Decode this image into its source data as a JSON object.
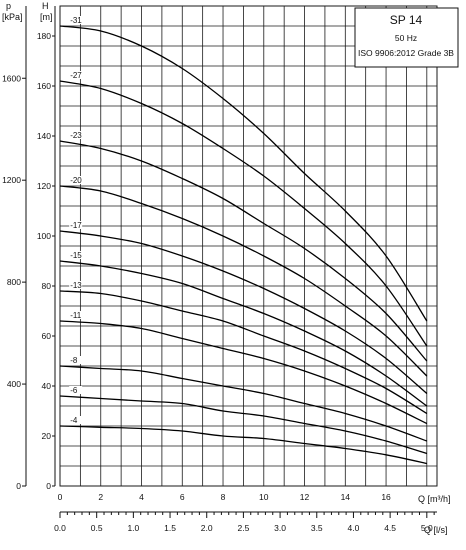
{
  "colors": {
    "background": "#ffffff",
    "grid": "#1a1a1a",
    "curve": "#000000",
    "text": "#111111"
  },
  "title_box": {
    "model": "SP 14",
    "frequency": "50 Hz",
    "standard": "ISO 9906:2012 Grade 3B"
  },
  "axes": {
    "left_outer": {
      "symbol": "p",
      "unit": "[kPa]",
      "ticks": [
        0,
        400,
        800,
        1200,
        1600
      ]
    },
    "left_inner": {
      "symbol": "H",
      "unit": "[m]",
      "ticks": [
        0,
        20,
        40,
        60,
        80,
        100,
        120,
        140,
        160,
        180
      ]
    },
    "bottom_primary": {
      "label": "Q [m³/h]",
      "ticks": [
        0,
        2,
        4,
        6,
        8,
        10,
        12,
        14,
        16
      ]
    },
    "bottom_secondary": {
      "label": "Q [l/s]",
      "ticks": [
        "0.0",
        "0.5",
        "1.0",
        "1.5",
        "2.0",
        "2.5",
        "3.0",
        "3.5",
        "4.0",
        "4.5",
        "5.0"
      ]
    }
  },
  "chart_data": {
    "type": "line",
    "title": "SP 14",
    "xlabel": "Q [m³/h]",
    "ylabel": "H [m]",
    "x2label": "Q [l/s]",
    "y2label": "p [kPa]",
    "xlim": [
      0,
      18.5
    ],
    "ylim": [
      0,
      192
    ],
    "grid": true,
    "series": [
      {
        "name": "-31",
        "x": [
          0,
          2,
          4,
          6,
          8,
          10,
          12,
          14,
          16,
          18
        ],
        "values": [
          184,
          182,
          176,
          167,
          155,
          141,
          125,
          110,
          92,
          66
        ]
      },
      {
        "name": "-27",
        "x": [
          0,
          2,
          4,
          6,
          8,
          10,
          12,
          14,
          16,
          18
        ],
        "values": [
          162,
          159,
          153,
          145,
          135,
          124,
          111,
          97,
          80,
          56
        ]
      },
      {
        "name": "-23",
        "x": [
          0,
          2,
          4,
          6,
          8,
          10,
          12,
          14,
          16,
          18
        ],
        "values": [
          138,
          135,
          130,
          123,
          115,
          105,
          95,
          83,
          69,
          50
        ]
      },
      {
        "name": "-20",
        "x": [
          0,
          2,
          4,
          6,
          8,
          10,
          12,
          14,
          16,
          18
        ],
        "values": [
          120,
          118,
          113,
          107,
          100,
          92,
          83,
          72,
          60,
          44
        ]
      },
      {
        "name": "-17",
        "x": [
          0,
          2,
          4,
          6,
          8,
          10,
          12,
          14,
          16,
          18
        ],
        "values": [
          102,
          100,
          97,
          92,
          86,
          79,
          71,
          62,
          51,
          37
        ]
      },
      {
        "name": "-15",
        "x": [
          0,
          2,
          4,
          6,
          8,
          10,
          12,
          14,
          16,
          18
        ],
        "values": [
          90,
          88,
          85,
          81,
          75,
          69,
          62,
          54,
          44,
          32
        ]
      },
      {
        "name": "-13",
        "x": [
          0,
          2,
          4,
          6,
          8,
          10,
          12,
          14,
          16,
          18
        ],
        "values": [
          78,
          77,
          74,
          70,
          66,
          60,
          54,
          47,
          39,
          29
        ]
      },
      {
        "name": "-11",
        "x": [
          0,
          2,
          4,
          6,
          8,
          10,
          12,
          14,
          16,
          18
        ],
        "values": [
          66,
          65,
          63,
          59,
          55,
          51,
          46,
          40,
          33,
          25
        ]
      },
      {
        "name": "-8",
        "x": [
          0,
          2,
          4,
          6,
          8,
          10,
          12,
          14,
          16,
          18
        ],
        "values": [
          48,
          47,
          46,
          43,
          40,
          37,
          33,
          29,
          24,
          18
        ]
      },
      {
        "name": "-6",
        "x": [
          0,
          2,
          4,
          6,
          8,
          10,
          12,
          14,
          16,
          18
        ],
        "values": [
          36,
          35,
          34,
          33,
          30,
          28,
          25,
          22,
          18,
          13
        ]
      },
      {
        "name": "-4",
        "x": [
          0,
          2,
          4,
          6,
          8,
          10,
          12,
          14,
          16,
          18
        ],
        "values": [
          24,
          23.5,
          23,
          22,
          20,
          19,
          17,
          15,
          12.5,
          9
        ]
      }
    ]
  }
}
